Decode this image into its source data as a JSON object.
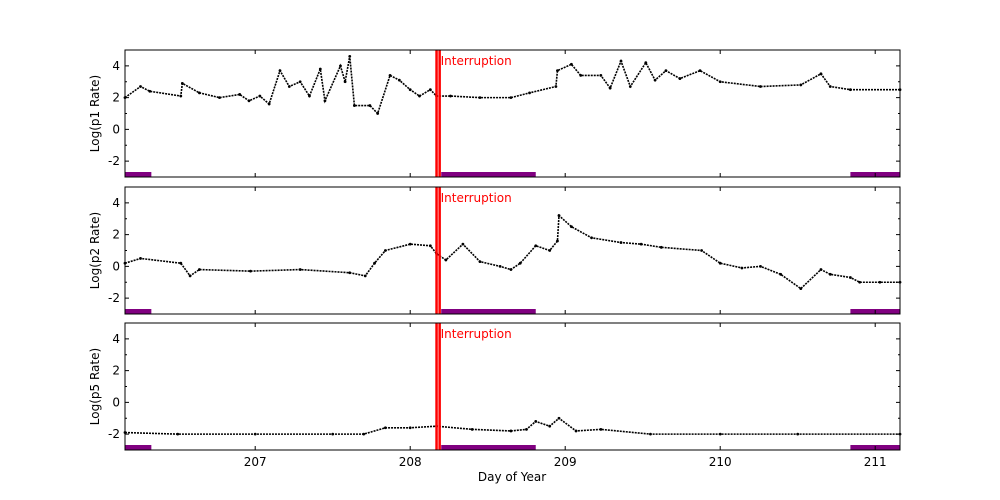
{
  "chart_data": {
    "type": "scatter",
    "xlabel": "Day of Year",
    "xlim": [
      206.16,
      211.16
    ],
    "xticks": [
      207,
      208,
      209,
      210,
      211
    ],
    "interruption": {
      "label": "Interruption",
      "x": [
        208.17,
        208.19
      ],
      "color": "#ff0000"
    },
    "bar_color": "#800080",
    "marker_color": "#000000",
    "panels": [
      {
        "ylabel": "Log(p1 Rate)",
        "ylim": [
          -3,
          5
        ],
        "yticks": [
          -2,
          0,
          2,
          4
        ],
        "bars": [
          [
            206.16,
            206.33
          ],
          [
            208.2,
            208.81
          ],
          [
            210.84,
            211.16
          ]
        ],
        "points": [
          [
            206.16,
            2.0
          ],
          [
            206.26,
            2.7
          ],
          [
            206.32,
            2.4
          ],
          [
            206.52,
            2.1
          ],
          [
            206.53,
            2.9
          ],
          [
            206.64,
            2.3
          ],
          [
            206.77,
            2.0
          ],
          [
            206.9,
            2.2
          ],
          [
            206.96,
            1.8
          ],
          [
            207.03,
            2.1
          ],
          [
            207.09,
            1.6
          ],
          [
            207.16,
            3.7
          ],
          [
            207.22,
            2.7
          ],
          [
            207.29,
            3.0
          ],
          [
            207.35,
            2.1
          ],
          [
            207.42,
            3.8
          ],
          [
            207.45,
            1.8
          ],
          [
            207.55,
            4.0
          ],
          [
            207.58,
            3.0
          ],
          [
            207.61,
            4.6
          ],
          [
            207.64,
            1.5
          ],
          [
            207.74,
            1.5
          ],
          [
            207.79,
            1.0
          ],
          [
            207.87,
            3.4
          ],
          [
            207.93,
            3.1
          ],
          [
            208.0,
            2.5
          ],
          [
            208.06,
            2.1
          ],
          [
            208.13,
            2.5
          ],
          [
            208.17,
            2.1
          ],
          [
            208.26,
            2.1
          ],
          [
            208.45,
            2.0
          ],
          [
            208.65,
            2.0
          ],
          [
            208.77,
            2.3
          ],
          [
            208.94,
            2.7
          ],
          [
            208.95,
            3.7
          ],
          [
            209.04,
            4.1
          ],
          [
            209.1,
            3.4
          ],
          [
            209.23,
            3.4
          ],
          [
            209.29,
            2.6
          ],
          [
            209.36,
            4.3
          ],
          [
            209.42,
            2.7
          ],
          [
            209.52,
            4.2
          ],
          [
            209.58,
            3.1
          ],
          [
            209.65,
            3.7
          ],
          [
            209.74,
            3.2
          ],
          [
            209.87,
            3.7
          ],
          [
            210.0,
            3.0
          ],
          [
            210.26,
            2.7
          ],
          [
            210.52,
            2.8
          ],
          [
            210.65,
            3.5
          ],
          [
            210.71,
            2.7
          ],
          [
            210.84,
            2.5
          ],
          [
            211.16,
            2.5
          ]
        ]
      },
      {
        "ylabel": "Log(p2 Rate)",
        "ylim": [
          -3,
          5
        ],
        "yticks": [
          -2,
          0,
          2,
          4
        ],
        "bars": [
          [
            206.16,
            206.33
          ],
          [
            208.2,
            208.81
          ],
          [
            210.84,
            211.16
          ]
        ],
        "points": [
          [
            206.16,
            0.2
          ],
          [
            206.26,
            0.5
          ],
          [
            206.52,
            0.2
          ],
          [
            206.58,
            -0.6
          ],
          [
            206.64,
            -0.2
          ],
          [
            206.97,
            -0.3
          ],
          [
            207.29,
            -0.2
          ],
          [
            207.61,
            -0.4
          ],
          [
            207.71,
            -0.6
          ],
          [
            207.77,
            0.2
          ],
          [
            207.84,
            1.0
          ],
          [
            208.0,
            1.4
          ],
          [
            208.13,
            1.3
          ],
          [
            208.17,
            0.8
          ],
          [
            208.23,
            0.4
          ],
          [
            208.34,
            1.4
          ],
          [
            208.45,
            0.3
          ],
          [
            208.58,
            0.0
          ],
          [
            208.65,
            -0.2
          ],
          [
            208.71,
            0.2
          ],
          [
            208.81,
            1.3
          ],
          [
            208.9,
            1.0
          ],
          [
            208.95,
            1.6
          ],
          [
            208.96,
            3.2
          ],
          [
            209.04,
            2.5
          ],
          [
            209.17,
            1.8
          ],
          [
            209.36,
            1.5
          ],
          [
            209.49,
            1.4
          ],
          [
            209.62,
            1.2
          ],
          [
            209.88,
            1.0
          ],
          [
            210.0,
            0.2
          ],
          [
            210.14,
            -0.1
          ],
          [
            210.26,
            0.0
          ],
          [
            210.39,
            -0.5
          ],
          [
            210.52,
            -1.4
          ],
          [
            210.65,
            -0.2
          ],
          [
            210.71,
            -0.5
          ],
          [
            210.84,
            -0.7
          ],
          [
            210.9,
            -1.0
          ],
          [
            211.03,
            -1.0
          ],
          [
            211.16,
            -1.0
          ]
        ]
      },
      {
        "ylabel": "Log(p5 Rate)",
        "ylim": [
          -3,
          5
        ],
        "yticks": [
          -2,
          0,
          2,
          4
        ],
        "bars": [
          [
            206.16,
            206.33
          ],
          [
            208.2,
            208.81
          ],
          [
            210.84,
            211.16
          ]
        ],
        "points": [
          [
            206.16,
            -1.9
          ],
          [
            206.5,
            -2.0
          ],
          [
            207.0,
            -2.0
          ],
          [
            207.5,
            -2.0
          ],
          [
            207.7,
            -2.0
          ],
          [
            207.84,
            -1.6
          ],
          [
            208.0,
            -1.6
          ],
          [
            208.17,
            -1.5
          ],
          [
            208.4,
            -1.7
          ],
          [
            208.65,
            -1.8
          ],
          [
            208.75,
            -1.7
          ],
          [
            208.81,
            -1.2
          ],
          [
            208.9,
            -1.5
          ],
          [
            208.96,
            -1.0
          ],
          [
            209.07,
            -1.8
          ],
          [
            209.23,
            -1.7
          ],
          [
            209.55,
            -2.0
          ],
          [
            210.0,
            -2.0
          ],
          [
            210.5,
            -2.0
          ],
          [
            211.16,
            -2.0
          ]
        ]
      }
    ]
  }
}
